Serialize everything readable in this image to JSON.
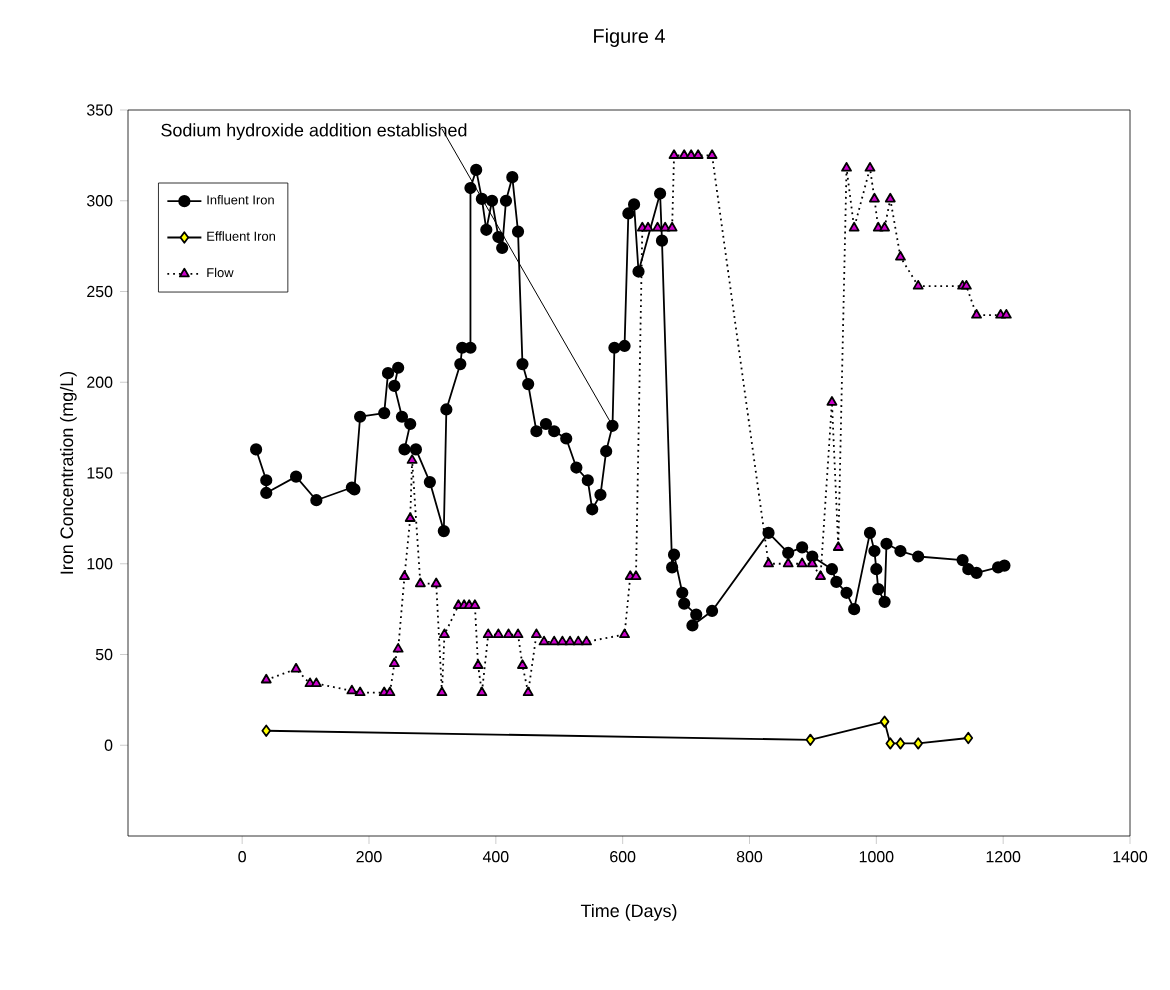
{
  "chart_data": {
    "type": "line",
    "title": "Figure 4",
    "xlabel": "Time (Days)",
    "ylabel": "Iron Concentration (mg/L)",
    "xlim": [
      -180,
      1400
    ],
    "xticks": [
      0,
      200,
      400,
      600,
      800,
      1000,
      1200,
      1400
    ],
    "ylim": [
      -50,
      350
    ],
    "yticks": [
      0,
      50,
      100,
      150,
      200,
      250,
      300,
      350
    ],
    "grid": false,
    "legend": "top left",
    "annotations": [
      {
        "text": "Sodium hydroxide addition established",
        "x": 584,
        "y": 176
      }
    ],
    "series": [
      {
        "name": "Influent Iron",
        "color": "#000000",
        "marker": "circle",
        "line_style": "solid",
        "x": [
          22,
          38,
          38,
          85,
          117,
          173,
          177,
          186,
          224,
          230,
          246,
          240,
          252,
          265,
          256,
          274,
          296,
          318,
          322,
          344,
          347,
          360,
          360,
          369,
          378,
          385,
          394,
          404,
          410,
          416,
          426,
          435,
          442,
          451,
          464,
          479,
          492,
          511,
          527,
          545,
          552,
          565,
          574,
          584,
          587,
          603,
          609,
          618,
          625,
          659,
          662,
          678,
          681,
          694,
          697,
          716,
          710,
          741,
          830,
          861,
          883,
          899,
          930,
          937,
          953,
          965,
          990,
          997,
          1000,
          1003,
          1013,
          1016,
          1038,
          1066,
          1136,
          1145,
          1158,
          1192,
          1202
        ],
        "values": [
          163,
          146,
          139,
          148,
          135,
          142,
          141,
          181,
          183,
          205,
          208,
          198,
          181,
          177,
          163,
          163,
          145,
          118,
          185,
          210,
          219,
          219,
          307,
          317,
          301,
          284,
          300,
          280,
          274,
          300,
          313,
          283,
          210,
          199,
          173,
          177,
          173,
          169,
          153,
          146,
          130,
          138,
          162,
          176,
          219,
          220,
          293,
          298,
          261,
          304,
          278,
          98,
          105,
          84,
          78,
          72,
          66,
          74,
          117,
          106,
          109,
          104,
          97,
          90,
          84,
          75,
          117,
          107,
          97,
          86,
          79,
          111,
          107,
          104,
          102,
          97,
          95,
          98,
          99
        ]
      },
      {
        "name": "Effluent Iron",
        "color": "#ffff00",
        "marker": "diamond",
        "line_style": "solid",
        "x": [
          38,
          896,
          1013,
          1022,
          1038,
          1066,
          1145
        ],
        "values": [
          8,
          3,
          13,
          1,
          1,
          1,
          4
        ]
      },
      {
        "name": "Flow",
        "color": "#cc00cc",
        "marker": "triangle",
        "line_style": "dotted",
        "x": [
          38,
          85,
          107,
          117,
          173,
          186,
          224,
          233,
          240,
          246,
          256,
          265,
          268,
          281,
          306,
          315,
          319,
          341,
          350,
          358,
          367,
          372,
          378,
          388,
          404,
          420,
          435,
          442,
          451,
          464,
          476,
          492,
          505,
          517,
          530,
          543,
          603,
          612,
          621,
          631,
          640,
          655,
          667,
          678,
          681,
          697,
          708,
          719,
          741,
          830,
          861,
          883,
          899,
          912,
          930,
          940,
          953,
          965,
          990,
          997,
          1003,
          1013,
          1022,
          1038,
          1066,
          1136,
          1142,
          1158,
          1196,
          1205
        ],
        "values": [
          36,
          42,
          34,
          34,
          30,
          29,
          29,
          29,
          45,
          53,
          93,
          125,
          157,
          89,
          89,
          29,
          61,
          77,
          77,
          77,
          77,
          44,
          29,
          61,
          61,
          61,
          61,
          44,
          29,
          61,
          57,
          57,
          57,
          57,
          57,
          57,
          61,
          93,
          93,
          285,
          285,
          285,
          285,
          285,
          325,
          325,
          325,
          325,
          325,
          100,
          100,
          100,
          100,
          93,
          189,
          109,
          318,
          285,
          318,
          301,
          285,
          285,
          301,
          269,
          253,
          253,
          253,
          237,
          237,
          237
        ]
      }
    ]
  }
}
